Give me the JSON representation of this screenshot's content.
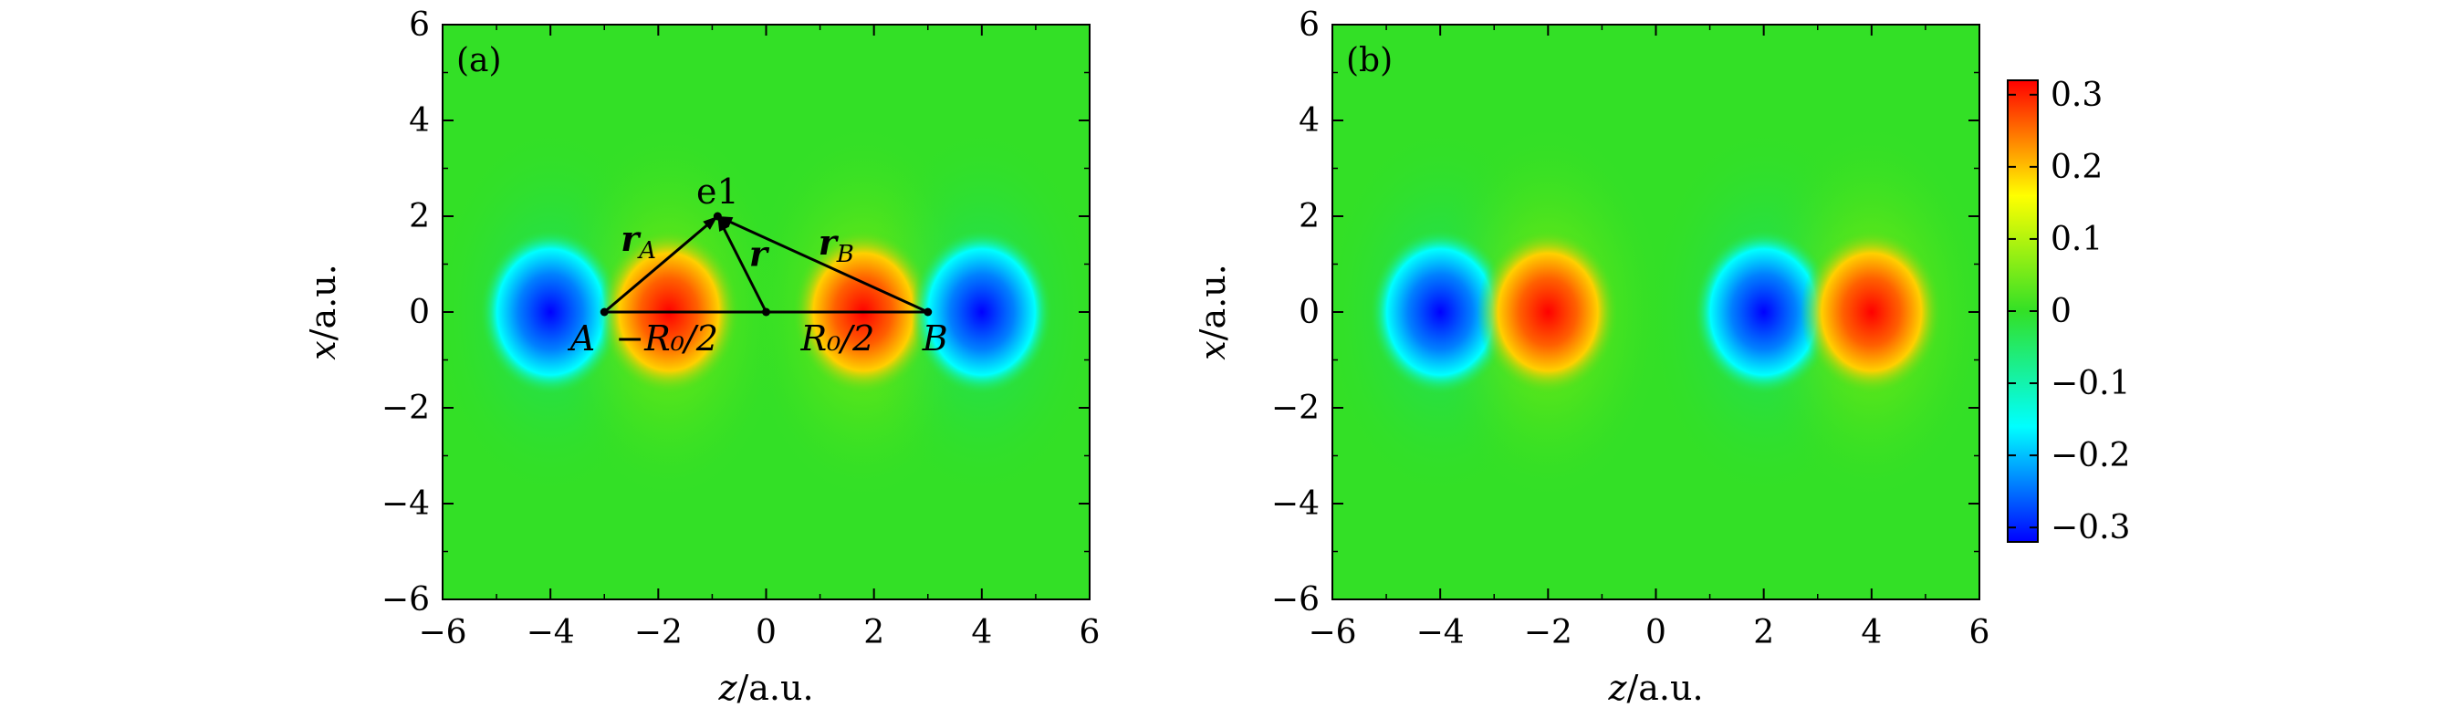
{
  "chart_data": [
    {
      "type": "heatmap",
      "panel_label": "(a)",
      "xlabel": "z/a.u.",
      "ylabel": "x/a.u.",
      "xlim": [
        -6,
        6
      ],
      "ylim": [
        -6,
        6
      ],
      "xticks": [
        -6,
        -4,
        -2,
        0,
        2,
        4,
        6
      ],
      "yticks": [
        -6,
        -4,
        -2,
        0,
        2,
        4,
        6
      ],
      "lobes": [
        {
          "z": -4.0,
          "x": 0,
          "value": -0.3
        },
        {
          "z": -1.8,
          "x": 0,
          "value": 0.3
        },
        {
          "z": 1.8,
          "x": 0,
          "value": 0.3
        },
        {
          "z": 4.0,
          "x": 0,
          "value": -0.3
        }
      ],
      "annotations": {
        "e1": "e1",
        "A": "A",
        "B": "B",
        "rA": "r",
        "rA_sub": "A",
        "rB": "r",
        "rB_sub": "B",
        "r": "r",
        "minusR0half": "−R₀/2",
        "R0half": "R₀/2"
      },
      "geometry_points": {
        "A": {
          "z": -3.0,
          "x": 0
        },
        "B": {
          "z": 3.0,
          "x": 0
        },
        "e1": {
          "z": -0.9,
          "x": 2.0
        },
        "origin": {
          "z": 0,
          "x": 0
        }
      }
    },
    {
      "type": "heatmap",
      "panel_label": "(b)",
      "xlabel": "z/a.u.",
      "ylabel": "x/a.u.",
      "xlim": [
        -6,
        6
      ],
      "ylim": [
        -6,
        6
      ],
      "xticks": [
        -6,
        -4,
        -2,
        0,
        2,
        4,
        6
      ],
      "yticks": [
        -6,
        -4,
        -2,
        0,
        2,
        4,
        6
      ],
      "lobes": [
        {
          "z": -4.0,
          "x": 0,
          "value": -0.3
        },
        {
          "z": -2.0,
          "x": 0,
          "value": 0.3
        },
        {
          "z": 2.0,
          "x": 0,
          "value": -0.3
        },
        {
          "z": 4.0,
          "x": 0,
          "value": 0.3
        }
      ]
    }
  ],
  "colorbar": {
    "min": -0.32,
    "max": 0.32,
    "ticks": [
      0.3,
      0.2,
      0.1,
      0,
      -0.1,
      -0.2,
      -0.3
    ],
    "tick_labels": [
      "0.3",
      "0.2",
      "0.1",
      "0",
      "−0.1",
      "−0.2",
      "−0.3"
    ],
    "colormap": [
      "#0000ff",
      "#00ffff",
      "#00ff00",
      "#ffff00",
      "#ff0000"
    ]
  },
  "colors": {
    "background_green": "#33e026"
  }
}
